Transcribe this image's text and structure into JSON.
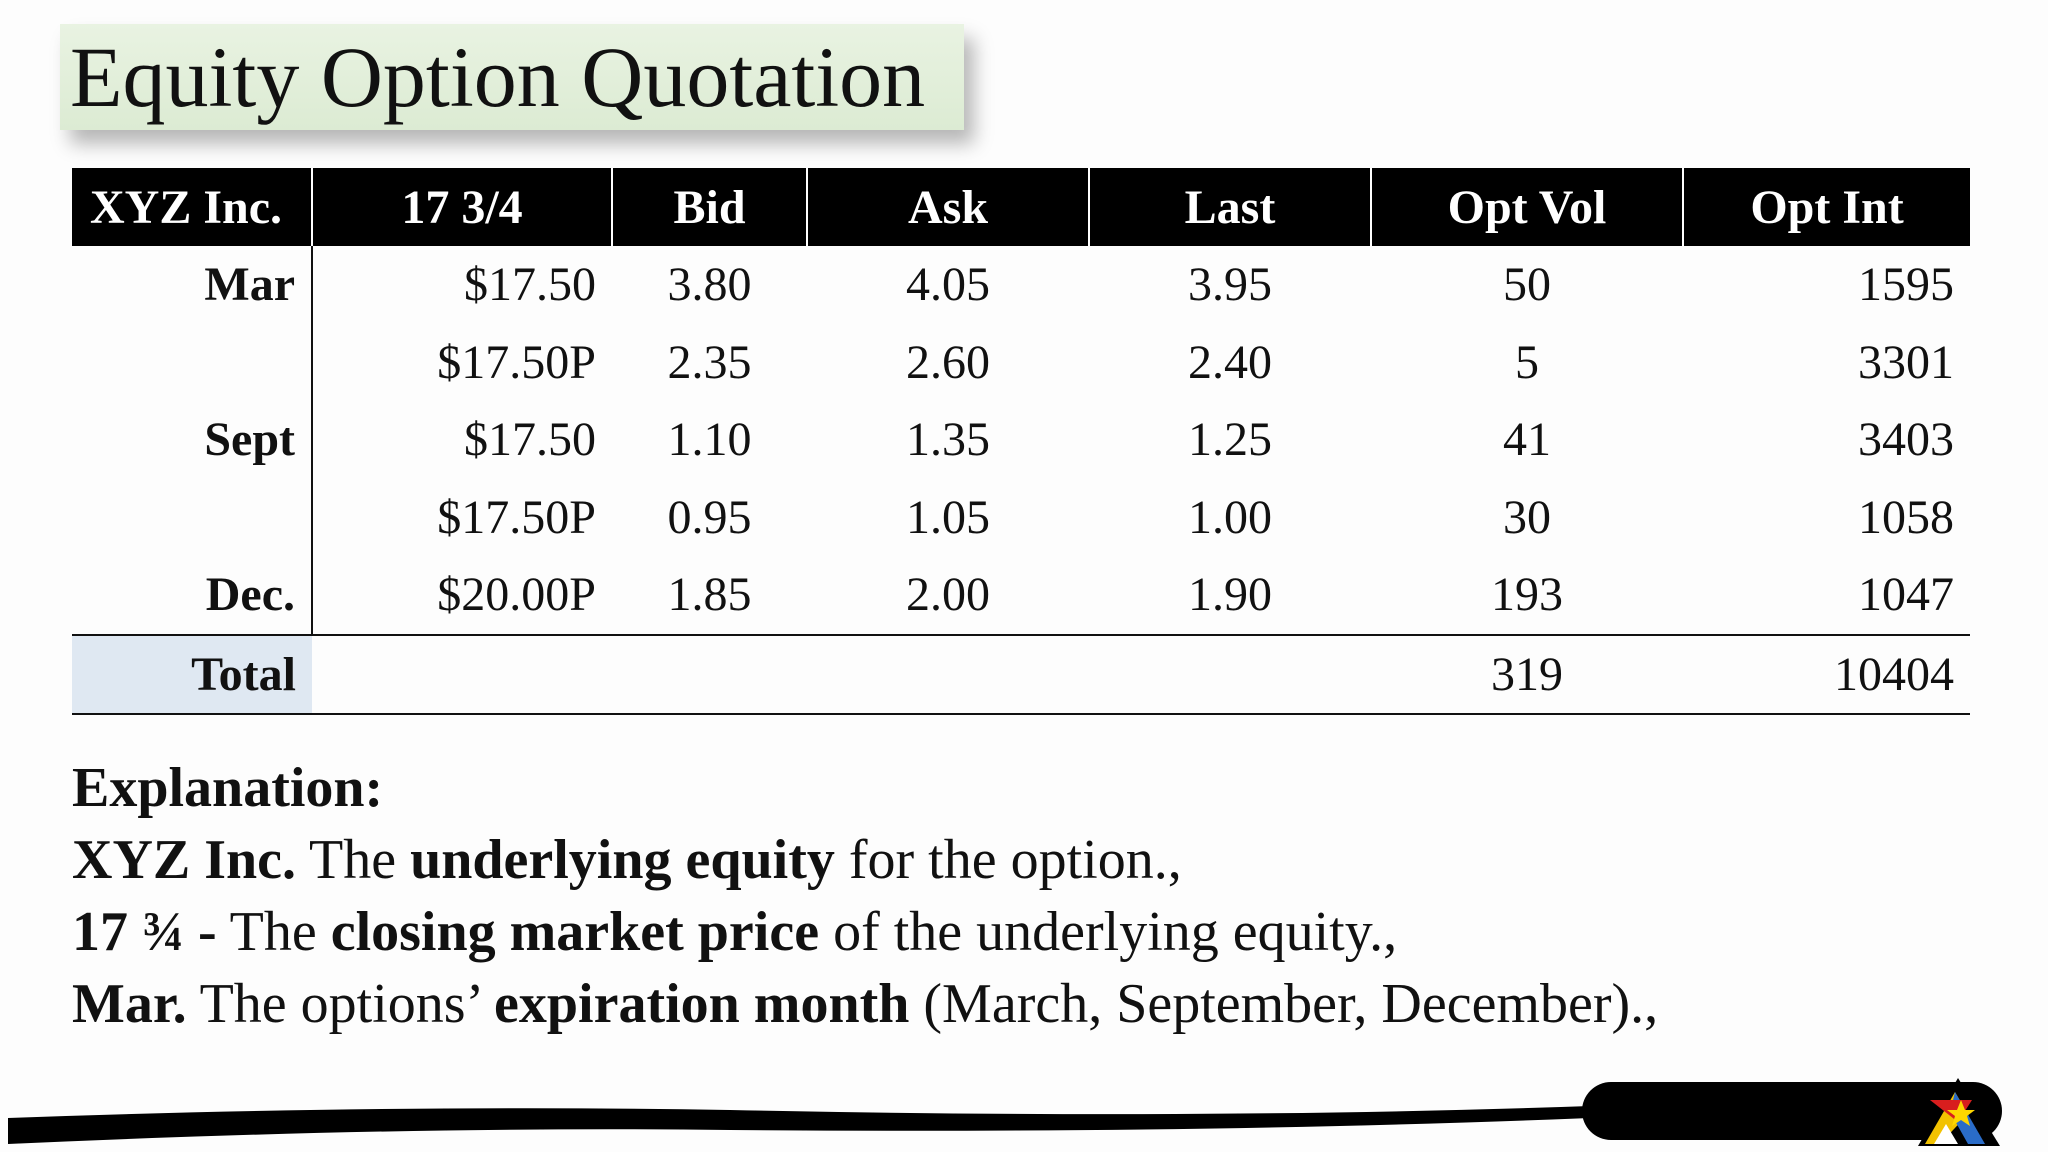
{
  "title": "Equity Option Quotation",
  "table": {
    "headers": [
      "XYZ Inc.",
      "17 3/4",
      "Bid",
      "Ask",
      "Last",
      "Opt Vol",
      "Opt Int"
    ],
    "rows": [
      {
        "month": "Mar",
        "strike": "$17.50",
        "bid": "3.80",
        "ask": "4.05",
        "last": "3.95",
        "vol": "50",
        "int": "1595"
      },
      {
        "month": "",
        "strike": "$17.50P",
        "bid": "2.35",
        "ask": "2.60",
        "last": "2.40",
        "vol": "5",
        "int": "3301"
      },
      {
        "month": "Sept",
        "strike": "$17.50",
        "bid": "1.10",
        "ask": "1.35",
        "last": "1.25",
        "vol": "41",
        "int": "3403"
      },
      {
        "month": "",
        "strike": "$17.50P",
        "bid": "0.95",
        "ask": "1.05",
        "last": "1.00",
        "vol": "30",
        "int": "1058"
      },
      {
        "month": "Dec.",
        "strike": "$20.00P",
        "bid": "1.85",
        "ask": "2.00",
        "last": "1.90",
        "vol": "193",
        "int": "1047"
      }
    ],
    "total": {
      "label": "Total",
      "vol": "319",
      "int": "10404"
    }
  },
  "explanation": {
    "heading": "Explanation:",
    "line1": {
      "b1": "XYZ Inc.",
      "t1": " The ",
      "b2": "underlying equity",
      "t2": " for the option.,"
    },
    "line2": {
      "b1": "17 ¾ -",
      "t1": " The ",
      "b2": "closing market price",
      "t2": " of the underlying equity.,"
    },
    "line3": {
      "b1": "Mar.",
      "t1": " The options’ ",
      "b2": "expiration month",
      "t2": " (March, September, December).,"
    }
  },
  "colors": {
    "header_bg": "#000000",
    "title_bg": "#dcebd3",
    "total_label_bg": "#dfe8f2"
  },
  "icons": {
    "logo": "triangle-star-logo"
  }
}
